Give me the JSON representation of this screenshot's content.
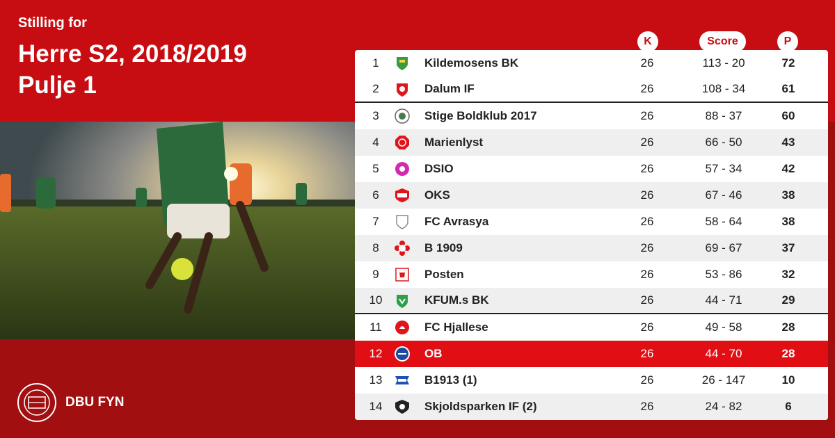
{
  "header": {
    "subtitle": "Stilling for",
    "title_line1": "Herre S2, 2018/2019",
    "title_line2": "Pulje 1"
  },
  "brand": {
    "name": "DBU FYN",
    "accent": "#c80d12",
    "highlight": "#e10f14"
  },
  "columns": {
    "k": "K",
    "score": "Score",
    "p": "P"
  },
  "rows": [
    {
      "pos": "1",
      "team": "Kildemosens BK",
      "k": "26",
      "score": "113 - 20",
      "p": "72",
      "crest": "green-shield-icon"
    },
    {
      "pos": "2",
      "team": "Dalum IF",
      "k": "26",
      "score": "108 - 34",
      "p": "61",
      "crest": "red-shield-icon"
    },
    {
      "pos": "3",
      "team": "Stige Boldklub 2017",
      "k": "26",
      "score": "88 - 37",
      "p": "60",
      "crest": "round-badge-icon"
    },
    {
      "pos": "4",
      "team": "Marienlyst",
      "k": "26",
      "score": "66 - 50",
      "p": "43",
      "crest": "red-octagon-icon"
    },
    {
      "pos": "5",
      "team": "DSIO",
      "k": "26",
      "score": "57 - 34",
      "p": "42",
      "crest": "magenta-circle-icon"
    },
    {
      "pos": "6",
      "team": "OKS",
      "k": "26",
      "score": "67 - 46",
      "p": "38",
      "crest": "red-shield-icon"
    },
    {
      "pos": "7",
      "team": "FC Avrasya",
      "k": "26",
      "score": "58 - 64",
      "p": "38",
      "crest": "grey-shield-icon"
    },
    {
      "pos": "8",
      "team": "B 1909",
      "k": "26",
      "score": "69 - 67",
      "p": "37",
      "crest": "red-flower-icon"
    },
    {
      "pos": "9",
      "team": "Posten",
      "k": "26",
      "score": "53 - 86",
      "p": "32",
      "crest": "red-square-icon"
    },
    {
      "pos": "10",
      "team": "KFUM.s BK",
      "k": "26",
      "score": "44 - 71",
      "p": "29",
      "crest": "green-shield-icon"
    },
    {
      "pos": "11",
      "team": "FC Hjallese",
      "k": "26",
      "score": "49 - 58",
      "p": "28",
      "crest": "red-circle-icon"
    },
    {
      "pos": "12",
      "team": "OB",
      "k": "26",
      "score": "44 - 70",
      "p": "28",
      "crest": "blue-circle-icon"
    },
    {
      "pos": "13",
      "team": "B1913 (1)",
      "k": "26",
      "score": "26 - 147",
      "p": "10",
      "crest": "blue-banner-icon"
    },
    {
      "pos": "14",
      "team": "Skjoldsparken IF (2)",
      "k": "26",
      "score": "24 - 82",
      "p": "6",
      "crest": "black-shield-icon"
    }
  ]
}
